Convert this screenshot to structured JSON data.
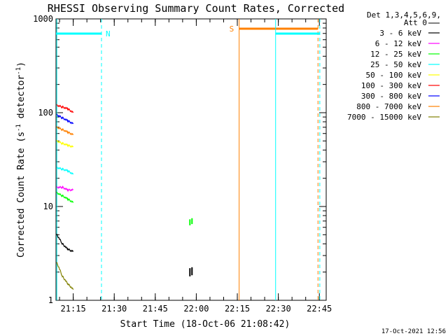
{
  "chart_data": {
    "type": "line",
    "title": "RHESSI Observing Summary Count Rates, Corrected",
    "xlabel": "Start Time (18-Oct-06 21:08:42)",
    "ylabel_main": "Corrected Count Rate (s",
    "ylabel_sup": "-1",
    "ylabel_tail": " detector",
    "ylabel_sup2": "-1",
    "ylabel_close": ")",
    "y_scale": "log",
    "ylim": [
      1,
      1000
    ],
    "x_range_minutes": [
      "21:08:42",
      "22:47:30"
    ],
    "x_ticks": [
      "21:15",
      "21:30",
      "21:45",
      "22:00",
      "22:15",
      "22:30",
      "22:45"
    ],
    "y_ticks": [
      "1",
      "10",
      "100",
      "1000"
    ],
    "legend_header": [
      "Det 1,3,4,5,6,9,",
      "Att 0"
    ],
    "legend_placement": "right",
    "timestamp": "17-Oct-2021 12:56",
    "series": [
      {
        "name": "3 - 6 keV",
        "color": "#000000",
        "t": [
          "21:09",
          "21:11",
          "21:13",
          "21:15"
        ],
        "values": [
          5,
          4,
          3.5,
          3.3
        ]
      },
      {
        "name": "6 - 12 keV",
        "color": "#ff00ff",
        "t": [
          "21:09",
          "21:11",
          "21:13",
          "21:15"
        ],
        "values": [
          16,
          16,
          15,
          15
        ]
      },
      {
        "name": "12 - 25 keV",
        "color": "#00ff00",
        "t": [
          "21:09",
          "21:11",
          "21:13",
          "21:15"
        ],
        "values": [
          14,
          13,
          12,
          11
        ]
      },
      {
        "name": "25 - 50 keV",
        "color": "#00ffff",
        "t": [
          "21:09",
          "21:11",
          "21:13",
          "21:15"
        ],
        "values": [
          26,
          25,
          24,
          22
        ]
      },
      {
        "name": "50 - 100 keV",
        "color": "#ffff00",
        "t": [
          "21:09",
          "21:11",
          "21:13",
          "21:15"
        ],
        "values": [
          50,
          47,
          45,
          43
        ]
      },
      {
        "name": "100 - 300 keV",
        "color": "#ff0000",
        "t": [
          "21:09",
          "21:11",
          "21:13",
          "21:15"
        ],
        "values": [
          120,
          115,
          110,
          100
        ]
      },
      {
        "name": "300 - 800 keV",
        "color": "#0000ff",
        "t": [
          "21:09",
          "21:11",
          "21:13",
          "21:15"
        ],
        "values": [
          95,
          88,
          82,
          76
        ]
      },
      {
        "name": "800 - 7000 keV",
        "color": "#ff8000",
        "t": [
          "21:09",
          "21:11",
          "21:13",
          "21:15"
        ],
        "values": [
          70,
          66,
          62,
          58
        ]
      },
      {
        "name": "7000 - 15000 keV",
        "color": "#808000",
        "t": [
          "21:09",
          "21:11",
          "21:13",
          "21:15"
        ],
        "values": [
          2.5,
          1.8,
          1.5,
          1.3
        ]
      }
    ],
    "markers": {
      "night_label": "N",
      "saa_label": "S",
      "night_color": "#00ffff",
      "saa_color": "#ff8000"
    }
  }
}
